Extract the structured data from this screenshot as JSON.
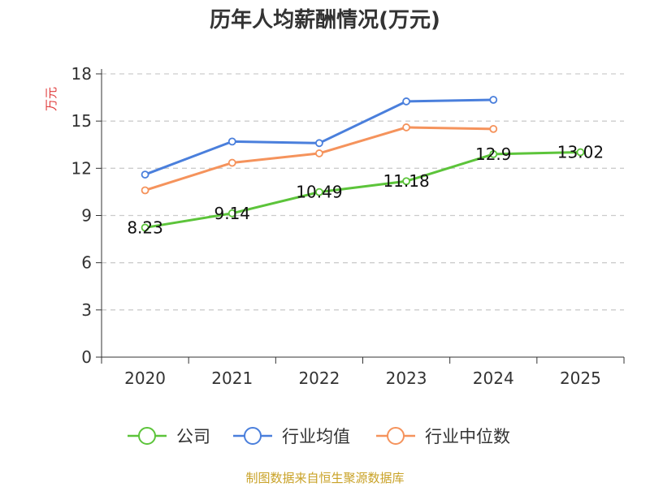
{
  "colors": {
    "axis": "#333333",
    "grid": "#cccccc",
    "ytitle": "#e03c3c",
    "source": "#c9a227"
  },
  "chart_data": {
    "type": "line",
    "title": "历年人均薪酬情况(万元)",
    "xlabel": "",
    "ylabel": "万元",
    "ylim": [
      0,
      18
    ],
    "yticks": [
      0,
      3,
      6,
      9,
      12,
      15,
      18
    ],
    "grid": true,
    "legend_position": "bottom",
    "categories": [
      "2020",
      "2021",
      "2022",
      "2023",
      "2024",
      "2025"
    ],
    "series": [
      {
        "name": "公司",
        "color": "#5cc43a",
        "values": [
          8.23,
          9.14,
          10.49,
          11.18,
          12.9,
          13.02
        ],
        "labels": [
          "8.23",
          "9.14",
          "10.49",
          "11.18",
          "12.9",
          "13.02"
        ]
      },
      {
        "name": "行业均值",
        "color": "#4a7fdc",
        "values": [
          11.6,
          13.7,
          13.6,
          16.25,
          16.35,
          null
        ]
      },
      {
        "name": "行业中位数",
        "color": "#f5935c",
        "values": [
          10.6,
          12.35,
          12.95,
          14.6,
          14.5,
          null
        ]
      }
    ]
  },
  "source": "制图数据来自恒生聚源数据库"
}
